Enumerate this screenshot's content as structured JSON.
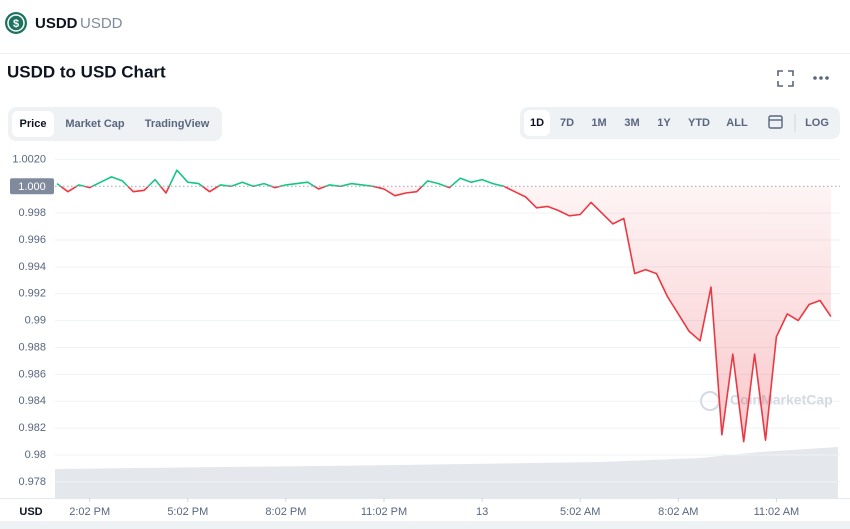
{
  "header": {
    "symbol": "USDD",
    "name": "USDD"
  },
  "title": "USDD to USD Chart",
  "tabs": [
    "Price",
    "Market Cap",
    "TradingView"
  ],
  "active_tab": 0,
  "ranges": [
    "1D",
    "7D",
    "1M",
    "3M",
    "1Y",
    "YTD",
    "ALL"
  ],
  "active_range": 0,
  "log_button": "LOG",
  "chart_data": {
    "type": "line",
    "currency_label": "USD",
    "watermark": "CoinMarketCap",
    "categories": [
      null,
      null,
      null,
      "2:02 PM",
      null,
      null,
      null,
      null,
      null,
      null,
      null,
      null,
      "5:02 PM",
      null,
      null,
      null,
      null,
      null,
      null,
      null,
      null,
      "8:02 PM",
      null,
      null,
      null,
      null,
      null,
      null,
      null,
      null,
      "11:02 PM",
      null,
      null,
      null,
      null,
      null,
      null,
      null,
      null,
      "13",
      null,
      null,
      null,
      null,
      null,
      null,
      null,
      null,
      "5:02 AM",
      null,
      null,
      null,
      null,
      null,
      null,
      null,
      null,
      "8:02 AM",
      null,
      null,
      null,
      null,
      null,
      null,
      null,
      null,
      "11:02 AM",
      null,
      null,
      null,
      null,
      null
    ],
    "series": [
      {
        "name": "USDD",
        "values": [
          1.0002,
          0.9996,
          1.0001,
          0.9999,
          1.0003,
          1.0007,
          1.0004,
          0.9996,
          0.9997,
          1.0005,
          0.9995,
          1.0012,
          1.0003,
          1.0002,
          0.9996,
          1.0001,
          1.0,
          1.0003,
          1.0,
          1.0002,
          0.9999,
          1.0001,
          1.0002,
          1.0003,
          0.9998,
          1.0001,
          1.0,
          1.0002,
          1.0001,
          1.0,
          0.9998,
          0.9993,
          0.9995,
          0.9996,
          1.0004,
          1.0002,
          0.9999,
          1.0006,
          1.0003,
          1.0005,
          1.0002,
          1.0,
          0.9996,
          0.9992,
          0.9984,
          0.9985,
          0.9982,
          0.9978,
          0.9979,
          0.9988,
          0.998,
          0.9972,
          0.9976,
          0.9935,
          0.9938,
          0.9935,
          0.9918,
          0.9905,
          0.9892,
          0.9885,
          0.9925,
          0.9815,
          0.9875,
          0.981,
          0.9875,
          0.9811,
          0.9888,
          0.9905,
          0.99,
          0.9912,
          0.9915,
          0.9903
        ]
      }
    ],
    "baseline": {
      "value": 1,
      "label": "1.000"
    },
    "colors": {
      "above": "#16c784",
      "below": "#ea3943"
    },
    "ylim": [
      0.9768,
      1.0027
    ],
    "yticks": [
      {
        "value": 1.002,
        "label": "1.0020"
      },
      0.998,
      0.996,
      0.994,
      0.992,
      0.99,
      0.988,
      0.986,
      0.984,
      0.982,
      0.98,
      0.978
    ],
    "grid": true
  }
}
